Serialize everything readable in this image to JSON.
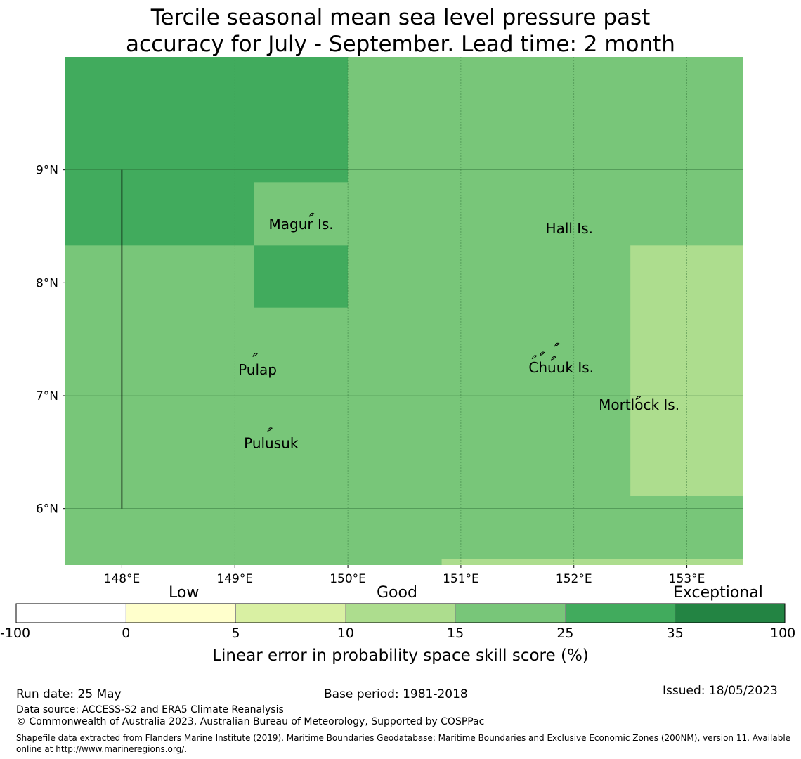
{
  "title": {
    "line1": "Tercile seasonal mean sea level pressure past",
    "line2": "accuracy for July - September. Lead time: 2 month"
  },
  "map": {
    "lon_range": [
      147.5,
      153.5
    ],
    "lat_range": [
      5.5,
      10.0
    ],
    "lon_ticks": [
      148,
      149,
      150,
      151,
      152,
      153
    ],
    "lon_tick_labels": [
      "148°E",
      "149°E",
      "150°E",
      "151°E",
      "152°E",
      "153°E"
    ],
    "lat_ticks": [
      6,
      7,
      8,
      9
    ],
    "lat_tick_labels": [
      "6°N",
      "7°N",
      "8°N",
      "9°N"
    ],
    "background_color": "#78c679",
    "regions": [
      {
        "lon": [
          147.5,
          150.0
        ],
        "lat": [
          8.33,
          10.0
        ],
        "category": "25-35",
        "color": "#41ab5d"
      },
      {
        "lon": [
          149.17,
          150.0
        ],
        "lat": [
          7.78,
          8.33
        ],
        "category": "25-35",
        "color": "#41ab5d"
      },
      {
        "lon": [
          149.17,
          150.0
        ],
        "lat": [
          8.33,
          8.89
        ],
        "category": "15-25",
        "color": "#78c679"
      },
      {
        "lon": [
          152.5,
          153.5
        ],
        "lat": [
          6.11,
          8.33
        ],
        "category": "10-15",
        "color": "#addd8e"
      },
      {
        "lon": [
          150.83,
          153.5
        ],
        "lat": [
          5.5,
          5.55
        ],
        "category": "10-15",
        "color": "#addd8e"
      }
    ],
    "boundary_line": {
      "lon": 148.0,
      "lat": [
        6.0,
        9.0
      ]
    },
    "places": [
      {
        "name": "Magur Is.",
        "lon": 149.3,
        "lat": 8.52
      },
      {
        "name": "Hall Is.",
        "lon": 151.75,
        "lat": 8.48
      },
      {
        "name": "Pulap",
        "lon": 149.03,
        "lat": 7.23
      },
      {
        "name": "Chuuk Is.",
        "lon": 151.6,
        "lat": 7.25
      },
      {
        "name": "Mortlock Is.",
        "lon": 152.22,
        "lat": 6.92
      },
      {
        "name": "Pulusuk",
        "lon": 149.08,
        "lat": 6.58
      }
    ]
  },
  "colorbar": {
    "bins": [
      {
        "from": "-100",
        "to": "0",
        "color": "#ffffff"
      },
      {
        "from": "0",
        "to": "5",
        "color": "#ffffcc"
      },
      {
        "from": "5",
        "to": "10",
        "color": "#d9f0a3"
      },
      {
        "from": "10",
        "to": "15",
        "color": "#addd8e"
      },
      {
        "from": "15",
        "to": "25",
        "color": "#78c679"
      },
      {
        "from": "25",
        "to": "35",
        "color": "#41ab5d"
      },
      {
        "from": "35",
        "to": "100",
        "color": "#238443"
      }
    ],
    "ticks": [
      "-100",
      "0",
      "5",
      "10",
      "15",
      "25",
      "35",
      "100"
    ],
    "category_labels": {
      "low": "Low",
      "good": "Good",
      "exceptional": "Exceptional"
    },
    "title": "Linear error in probability space skill score (%)"
  },
  "footer": {
    "run_date": "Run date: 25 May",
    "base_period": "Base period: 1981-2018",
    "issued": "Issued: 18/05/2023",
    "data_source": "Data source: ACCESS-S2 and ERA5 Climate Reanalysis",
    "copyright": "© Commonwealth of Australia 2023, Australian Bureau of Meteorology, Supported by COSPPac",
    "shapefile": "Shapefile data extracted from Flanders Marine Institute (2019), Maritime Boundaries Geodatabase: Maritime Boundaries and Exclusive Economic Zones (200NM), version 11. Available online at http://www.marineregions.org/."
  }
}
